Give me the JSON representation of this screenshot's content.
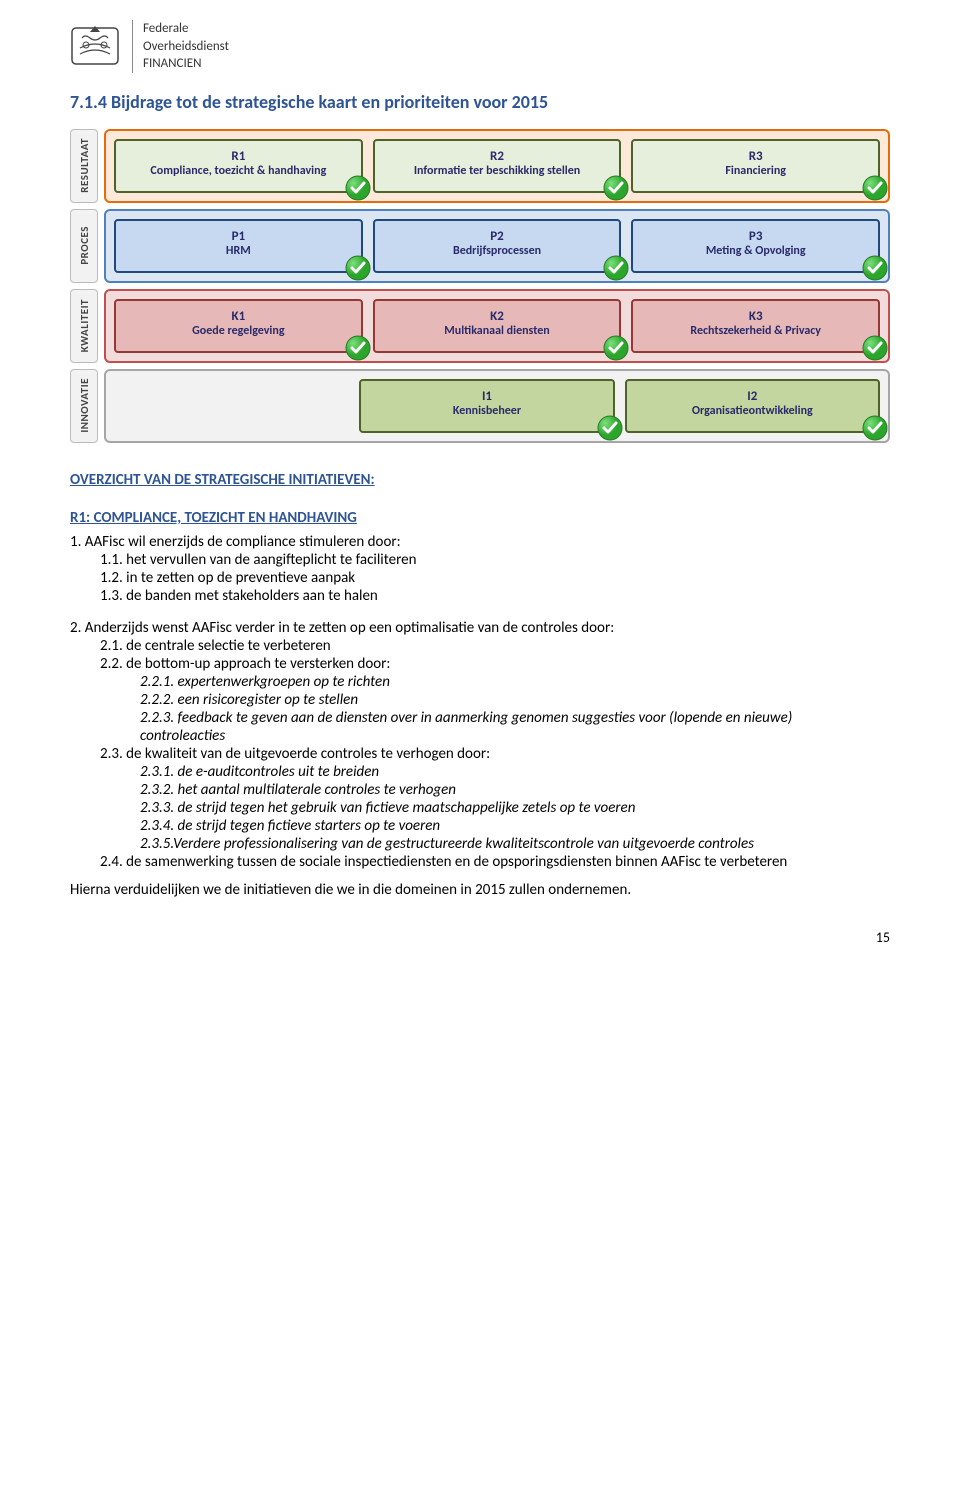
{
  "header": {
    "org_line1": "Federale",
    "org_line2": "Overheidsdienst",
    "org_line3": "FINANCIEN"
  },
  "section_title": "7.1.4 Bijdrage tot de strategische kaart en prioriteiten voor 2015",
  "chart": {
    "rows": [
      {
        "side": "RESULTAAT",
        "bg": "#fde9d9",
        "border": "#e46c0a",
        "cell_bg": "#e6efdb",
        "cell_border": "#4f6228",
        "cells": [
          {
            "code": "R1",
            "label": "Compliance, toezicht & handhaving",
            "check": true
          },
          {
            "code": "R2",
            "label": "Informatie ter beschikking stellen",
            "check": true
          },
          {
            "code": "R3",
            "label": "Financiering",
            "check": true
          }
        ]
      },
      {
        "side": "PROCES",
        "bg": "#dce6f2",
        "border": "#4f81bd",
        "cell_bg": "#c6d9f1",
        "cell_border": "#1f497d",
        "cells": [
          {
            "code": "P1",
            "label": "HRM",
            "check": true
          },
          {
            "code": "P2",
            "label": "Bedrijfsprocessen",
            "check": true
          },
          {
            "code": "P3",
            "label": "Meting & Opvolging",
            "check": true
          }
        ]
      },
      {
        "side": "KWALITEIT",
        "bg": "#f2dcdb",
        "border": "#c0504d",
        "cell_bg": "#e6b9b8",
        "cell_border": "#953735",
        "cells": [
          {
            "code": "K1",
            "label": "Goede regelgeving",
            "check": true
          },
          {
            "code": "K2",
            "label": "Multikanaal diensten",
            "check": true
          },
          {
            "code": "K3",
            "label": "Rechtszekerheid & Privacy",
            "check": true
          }
        ]
      },
      {
        "side": "INNOVATIE",
        "bg": "#f2f2f2",
        "border": "#a6a6a6",
        "cell_bg": "#c4d6a0",
        "cell_border": "#4f6228",
        "leading_spacer": true,
        "cells": [
          {
            "code": "I1",
            "label": "Kennisbeheer",
            "check": true
          },
          {
            "code": "I2",
            "label": "Organisatieontwikkeling",
            "check": true
          }
        ]
      }
    ]
  },
  "overview_title": "OVERZICHT VAN DE STRATEGISCHE INITIATIEVEN:",
  "r1_title": "R1: COMPLIANCE, TOEZICHT EN HANDHAVING",
  "list": {
    "i1": "1.   AAFisc wil enerzijds de compliance stimuleren door:",
    "i1_1": "1.1. het vervullen van de aangifteplicht te faciliteren",
    "i1_2": "1.2. in te zetten op de preventieve aanpak",
    "i1_3": "1.3. de banden met stakeholders aan te halen",
    "i2": "2.   Anderzijds wenst AAFisc verder in te zetten op een optimalisatie van de controles door:",
    "i2_1": "2.1. de centrale selectie te verbeteren",
    "i2_2": "2.2. de bottom-up approach te versterken door:",
    "i2_2_1": "2.2.1. expertenwerkgroepen op te richten",
    "i2_2_2": "2.2.2. een risicoregister op te stellen",
    "i2_2_3": "2.2.3. feedback te geven aan de diensten over in aanmerking genomen suggesties voor (lopende en nieuwe) controleacties",
    "i2_3": "2.3.  de kwaliteit van de uitgevoerde controles te verhogen door:",
    "i2_3_1": "2.3.1. de e-auditcontroles uit te breiden",
    "i2_3_2": "2.3.2. het aantal multilaterale controles te verhogen",
    "i2_3_3": "2.3.3. de strijd tegen het gebruik van fictieve maatschappelijke zetels op te voeren",
    "i2_3_4": "2.3.4. de strijd tegen fictieve starters op te voeren",
    "i2_3_5": "2.3.5.Verdere professionalisering van de gestructureerde kwaliteitscontrole van uitgevoerde controles",
    "i2_4": "2.4.  de samenwerking tussen de sociale inspectiediensten en de opsporingsdiensten binnen AAFisc te verbeteren"
  },
  "closing": "Hierna verduidelijken we de initiatieven die we in die domeinen in 2015 zullen ondernemen.",
  "page_number": "15"
}
